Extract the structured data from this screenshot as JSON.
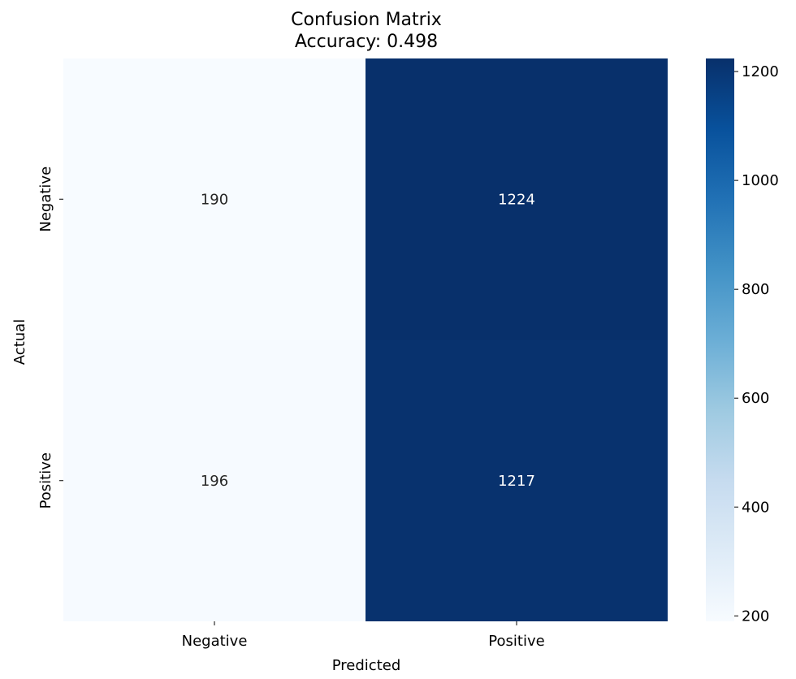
{
  "chart_data": {
    "type": "heatmap",
    "title": "Confusion Matrix",
    "subtitle": "Accuracy: 0.498",
    "xlabel": "Predicted",
    "ylabel": "Actual",
    "x_categories": [
      "Negative",
      "Positive"
    ],
    "y_categories": [
      "Negative",
      "Positive"
    ],
    "values": [
      [
        190,
        1224
      ],
      [
        196,
        1217
      ]
    ],
    "colormap": "Blues",
    "color_min": "#f7fbff",
    "color_max": "#08306b",
    "colorbar": {
      "range": [
        190,
        1224
      ],
      "ticks": [
        200,
        400,
        600,
        800,
        1000,
        1200
      ]
    }
  }
}
